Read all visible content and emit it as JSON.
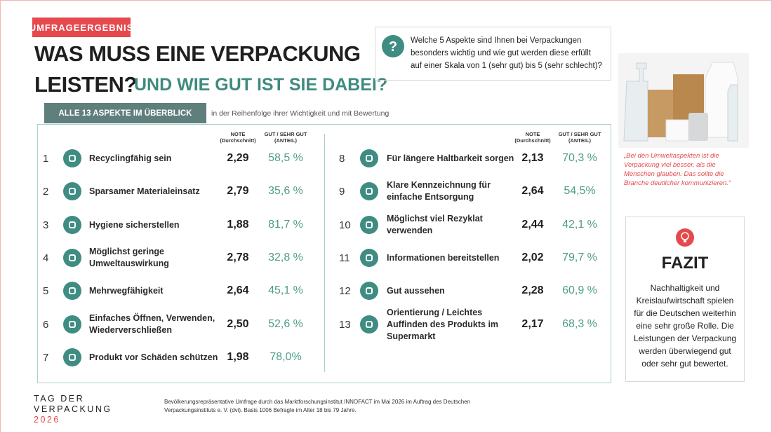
{
  "badge": "UMFRAGEERGEBNIS",
  "title": {
    "line1": "WAS MUSS EINE VERPACKUNG",
    "line2": "LEISTEN?",
    "subtitle": "UND WIE GUT IST SIE DABEI?"
  },
  "question": "Welche 5 Aspekte sind Ihnen bei Verpackungen\nbesonders wichtig und wie gut werden diese erfüllt\nauf einer Skala von 1 (sehr gut) bis 5 (sehr schlecht)?",
  "overview": {
    "tab": "ALLE 13 ASPEKTE IM ÜBERBLICK",
    "note": "in der Reihenfolge ihrer Wichtigkeit und mit Bewertung"
  },
  "table": {
    "columns": {
      "note": "NOTE",
      "note_sub": "(Durchschnitt)",
      "share": "GUT / SEHR GUT",
      "share_sub": "(ANTEIL)"
    },
    "rows": [
      {
        "rank": 1,
        "aspect": "Recyclingfähig sein",
        "note": "2,29",
        "share": "58,5 %"
      },
      {
        "rank": 2,
        "aspect": "Sparsamer Materialeinsatz",
        "note": "2,79",
        "share": "35,6 %"
      },
      {
        "rank": 3,
        "aspect": "Hygiene sicherstellen",
        "note": "1,88",
        "share": "81,7 %"
      },
      {
        "rank": 4,
        "aspect": "Möglichst geringe\nUmweltauswirkung",
        "note": "2,78",
        "share": "32,8 %"
      },
      {
        "rank": 5,
        "aspect": "Mehrwegfähigkeit",
        "note": "2,64",
        "share": "45,1 %"
      },
      {
        "rank": 6,
        "aspect": "Einfaches Öffnen, Verwenden,\nWiederverschließen",
        "note": "2,50",
        "share": "52,6 %"
      },
      {
        "rank": 7,
        "aspect": "Produkt vor Schäden schützen",
        "note": "1,98",
        "share": "78,0%"
      },
      {
        "rank": 8,
        "aspect": "Für längere Haltbarkeit sorgen",
        "note": "2,13",
        "share": "70,3 %"
      },
      {
        "rank": 9,
        "aspect": "Klare Kennzeichnung für\neinfache Entsorgung",
        "note": "2,64",
        "share": "54,5%"
      },
      {
        "rank": 10,
        "aspect": "Möglichst viel Rezyklat\nverwenden",
        "note": "2,44",
        "share": "42,1 %"
      },
      {
        "rank": 11,
        "aspect": "Informationen bereitstellen",
        "note": "2,02",
        "share": "79,7 %"
      },
      {
        "rank": 12,
        "aspect": "Gut aussehen",
        "note": "2,28",
        "share": "60,9 %"
      },
      {
        "rank": 13,
        "aspect": "Orientierung / Leichtes\nAuffinden des Produkts im\nSupermarkt",
        "note": "2,17",
        "share": "68,3 %"
      }
    ]
  },
  "quote": "„Bei den Umweltaspekten ist die\nVerpackung viel besser, als die\nMenschen glauben. Das sollte die\nBranche deutlicher kommunizieren.“",
  "fazit": {
    "title": "FAZIT",
    "text": "Nachhaltigkeit und\nKreislaufwirtschaft spielen\nfür die Deutschen weiterhin\neine sehr große Rolle. Die\nLeistungen der Verpackung\nwerden überwiegend gut\noder sehr gut bewertet."
  },
  "logo": {
    "line1": "TAG DER",
    "line2": "VERPACKUNG",
    "year": "2026"
  },
  "footnote": "Bevölkerungsrepräsentative Umfrage durch das Marktforschungsinstitut INNOFACT im Mai 2026 im Auftrag des Deutschen\nVerpackungsinstituts e. V. (dvi). Basis 1006 Befragte im Alter 18 bis 79 Jahre."
}
